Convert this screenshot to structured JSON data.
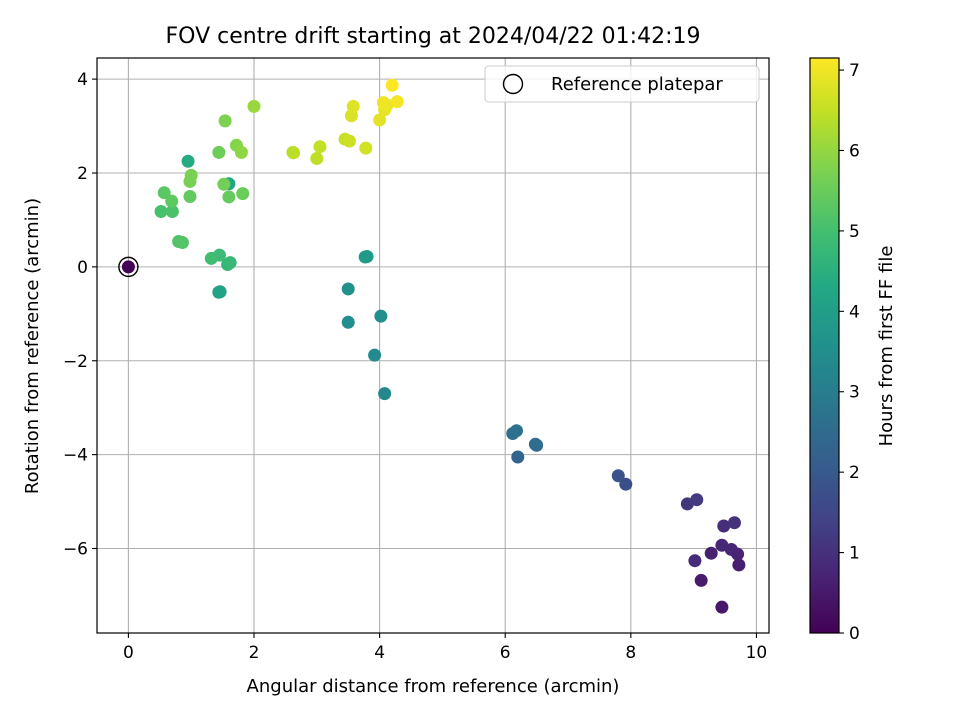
{
  "chart_data": {
    "type": "scatter",
    "title": "FOV centre drift starting at 2024/04/22 01:42:19",
    "xlabel": "Angular distance from reference (arcmin)",
    "ylabel": "Rotation from reference (arcmin)",
    "xlim": [
      -0.5,
      10.2
    ],
    "ylim": [
      -7.8,
      4.45
    ],
    "xticks": [
      0,
      2,
      4,
      6,
      8,
      10
    ],
    "yticks": [
      -6,
      -4,
      -2,
      0,
      2,
      4
    ],
    "xtick_labels": [
      "0",
      "2",
      "4",
      "6",
      "8",
      "10"
    ],
    "ytick_labels": [
      "−6",
      "−4",
      "−2",
      "0",
      "2",
      "4"
    ],
    "grid": true,
    "legend": {
      "placement": "top-right",
      "entries": [
        "Reference platepar"
      ]
    },
    "colorbar": {
      "label": "Hours from first FF file",
      "range": [
        0,
        7.15
      ],
      "ticks": [
        0,
        1,
        2,
        3,
        4,
        5,
        6,
        7
      ],
      "tick_labels": [
        "0",
        "1",
        "2",
        "3",
        "4",
        "5",
        "6",
        "7"
      ],
      "colormap": "viridis"
    },
    "reference_point": {
      "x": 0,
      "y": 0
    },
    "points": [
      {
        "x": 0.0,
        "y": 0.0,
        "t": 0.05
      },
      {
        "x": 9.45,
        "y": -7.25,
        "t": 0.45
      },
      {
        "x": 9.12,
        "y": -6.68,
        "t": 0.55
      },
      {
        "x": 9.72,
        "y": -6.35,
        "t": 0.6
      },
      {
        "x": 9.28,
        "y": -6.1,
        "t": 0.65
      },
      {
        "x": 9.7,
        "y": -6.12,
        "t": 0.7
      },
      {
        "x": 9.6,
        "y": -6.02,
        "t": 0.75
      },
      {
        "x": 9.45,
        "y": -5.93,
        "t": 0.8
      },
      {
        "x": 9.02,
        "y": -6.26,
        "t": 0.9
      },
      {
        "x": 9.48,
        "y": -5.52,
        "t": 0.95
      },
      {
        "x": 9.65,
        "y": -5.45,
        "t": 1.0
      },
      {
        "x": 8.9,
        "y": -5.05,
        "t": 1.1
      },
      {
        "x": 9.05,
        "y": -4.96,
        "t": 1.2
      },
      {
        "x": 7.92,
        "y": -4.63,
        "t": 1.7
      },
      {
        "x": 7.8,
        "y": -4.45,
        "t": 1.85
      },
      {
        "x": 6.2,
        "y": -4.05,
        "t": 2.3
      },
      {
        "x": 6.5,
        "y": -3.8,
        "t": 2.5
      },
      {
        "x": 6.48,
        "y": -3.78,
        "t": 2.55
      },
      {
        "x": 6.12,
        "y": -3.55,
        "t": 2.6
      },
      {
        "x": 6.18,
        "y": -3.49,
        "t": 2.7
      },
      {
        "x": 4.08,
        "y": -2.7,
        "t": 3.3
      },
      {
        "x": 3.92,
        "y": -1.88,
        "t": 3.4
      },
      {
        "x": 3.5,
        "y": -1.18,
        "t": 3.5
      },
      {
        "x": 4.02,
        "y": -1.05,
        "t": 3.55
      },
      {
        "x": 3.5,
        "y": -0.47,
        "t": 3.6
      },
      {
        "x": 3.77,
        "y": 0.21,
        "t": 3.85
      },
      {
        "x": 3.8,
        "y": 0.22,
        "t": 3.9
      },
      {
        "x": 1.44,
        "y": -0.54,
        "t": 4.05
      },
      {
        "x": 1.46,
        "y": -0.53,
        "t": 4.1
      },
      {
        "x": 1.6,
        "y": 1.77,
        "t": 4.2
      },
      {
        "x": 0.95,
        "y": 2.25,
        "t": 4.35
      },
      {
        "x": 1.58,
        "y": 0.05,
        "t": 4.7
      },
      {
        "x": 1.62,
        "y": 0.09,
        "t": 4.75
      },
      {
        "x": 1.45,
        "y": 0.25,
        "t": 4.85
      },
      {
        "x": 1.32,
        "y": 0.18,
        "t": 4.95
      },
      {
        "x": 0.52,
        "y": 1.18,
        "t": 5.05
      },
      {
        "x": 0.7,
        "y": 1.18,
        "t": 5.1
      },
      {
        "x": 0.8,
        "y": 0.54,
        "t": 5.15
      },
      {
        "x": 0.86,
        "y": 0.52,
        "t": 5.2
      },
      {
        "x": 0.57,
        "y": 1.58,
        "t": 5.3
      },
      {
        "x": 0.69,
        "y": 1.4,
        "t": 5.35
      },
      {
        "x": 0.98,
        "y": 1.5,
        "t": 5.4
      },
      {
        "x": 1.6,
        "y": 1.49,
        "t": 5.45
      },
      {
        "x": 1.82,
        "y": 1.56,
        "t": 5.5
      },
      {
        "x": 1.44,
        "y": 2.44,
        "t": 5.55
      },
      {
        "x": 1.52,
        "y": 1.76,
        "t": 5.6
      },
      {
        "x": 0.98,
        "y": 1.82,
        "t": 5.65
      },
      {
        "x": 1.0,
        "y": 1.95,
        "t": 5.7
      },
      {
        "x": 1.54,
        "y": 3.11,
        "t": 5.75
      },
      {
        "x": 1.72,
        "y": 2.59,
        "t": 5.85
      },
      {
        "x": 1.8,
        "y": 2.44,
        "t": 5.95
      },
      {
        "x": 2.0,
        "y": 3.42,
        "t": 6.05
      },
      {
        "x": 2.62,
        "y": 2.44,
        "t": 6.35
      },
      {
        "x": 2.63,
        "y": 2.43,
        "t": 6.4
      },
      {
        "x": 3.0,
        "y": 2.31,
        "t": 6.45
      },
      {
        "x": 3.05,
        "y": 2.56,
        "t": 6.5
      },
      {
        "x": 3.45,
        "y": 2.72,
        "t": 6.55
      },
      {
        "x": 3.52,
        "y": 2.68,
        "t": 6.6
      },
      {
        "x": 3.78,
        "y": 2.53,
        "t": 6.65
      },
      {
        "x": 3.55,
        "y": 3.22,
        "t": 6.75
      },
      {
        "x": 3.58,
        "y": 3.42,
        "t": 6.8
      },
      {
        "x": 4.0,
        "y": 3.13,
        "t": 6.85
      },
      {
        "x": 4.08,
        "y": 3.35,
        "t": 6.9
      },
      {
        "x": 4.12,
        "y": 3.45,
        "t": 6.95
      },
      {
        "x": 4.06,
        "y": 3.5,
        "t": 7.0
      },
      {
        "x": 4.28,
        "y": 3.52,
        "t": 7.05
      },
      {
        "x": 4.2,
        "y": 3.87,
        "t": 7.12
      }
    ]
  }
}
